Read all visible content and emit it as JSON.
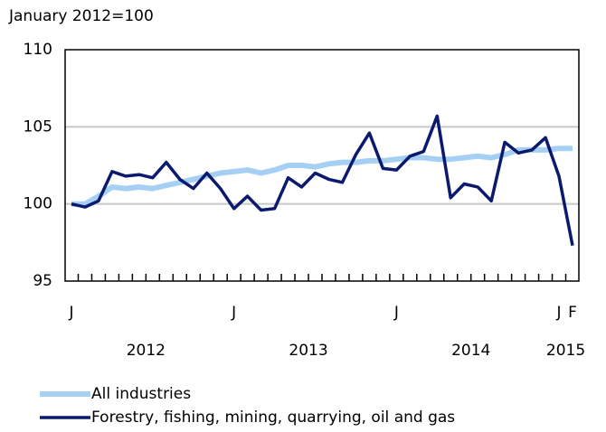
{
  "chart_data": {
    "type": "line",
    "y_label": "January 2012=100",
    "categories": [
      "J",
      null,
      null,
      null,
      null,
      null,
      null,
      null,
      null,
      null,
      null,
      null,
      "J",
      null,
      null,
      null,
      null,
      null,
      null,
      null,
      null,
      null,
      null,
      null,
      "J",
      null,
      null,
      null,
      null,
      null,
      null,
      null,
      null,
      null,
      null,
      null,
      "J",
      "F"
    ],
    "years": [
      "2012",
      "2013",
      "2014",
      "2015"
    ],
    "series": [
      {
        "name": "All industries",
        "color": "#a6cff4",
        "values": [
          100.0,
          100.0,
          100.5,
          101.1,
          101.0,
          101.1,
          101.0,
          101.2,
          101.4,
          101.6,
          101.8,
          102.0,
          102.1,
          102.2,
          102.0,
          102.2,
          102.5,
          102.5,
          102.4,
          102.6,
          102.7,
          102.7,
          102.8,
          102.8,
          102.9,
          103.0,
          103.0,
          102.9,
          102.9,
          103.0,
          103.1,
          103.0,
          103.2,
          103.5,
          103.5,
          103.5,
          103.6,
          103.6
        ]
      },
      {
        "name": "Forestry, fishing, mining, quarrying, oil and gas",
        "color": "#0b1a6e",
        "values": [
          100.0,
          99.8,
          100.2,
          102.1,
          101.8,
          101.9,
          101.7,
          102.7,
          101.6,
          101.0,
          102.0,
          101.0,
          99.7,
          100.5,
          99.6,
          99.7,
          101.7,
          101.1,
          102.0,
          101.6,
          101.4,
          103.2,
          104.6,
          102.3,
          102.2,
          103.1,
          103.4,
          105.7,
          100.4,
          101.3,
          101.1,
          100.2,
          104.0,
          103.3,
          103.5,
          104.3,
          101.8,
          97.3
        ]
      }
    ],
    "ylim": [
      95,
      110
    ],
    "yticks": [
      95,
      100,
      105,
      110
    ],
    "grid": true
  }
}
